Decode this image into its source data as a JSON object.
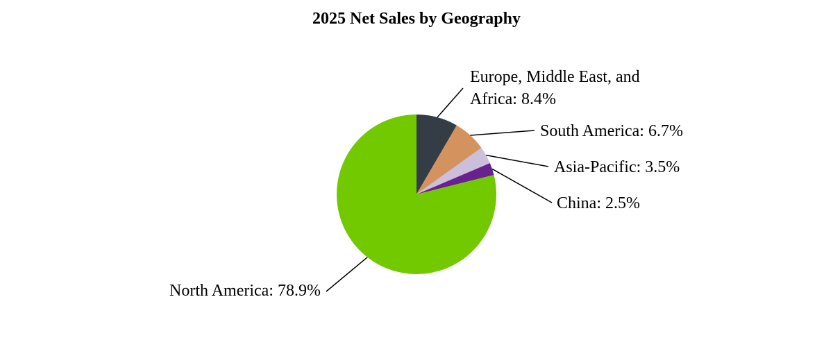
{
  "chart_data": {
    "type": "pie",
    "title": "2025 Net Sales by Geography",
    "values": [
      8.4,
      6.7,
      3.5,
      2.5,
      78.9
    ],
    "value_labels": [
      "Europe, Middle East, and Africa: 8.4%",
      "South America: 6.7%",
      "Asia-Pacific: 3.5%",
      "China: 2.5%",
      "North America: 78.9%"
    ],
    "colors": [
      "#343d46",
      "#d4925f",
      "#cbbfdc",
      "#6a2190",
      "#72c900"
    ]
  }
}
